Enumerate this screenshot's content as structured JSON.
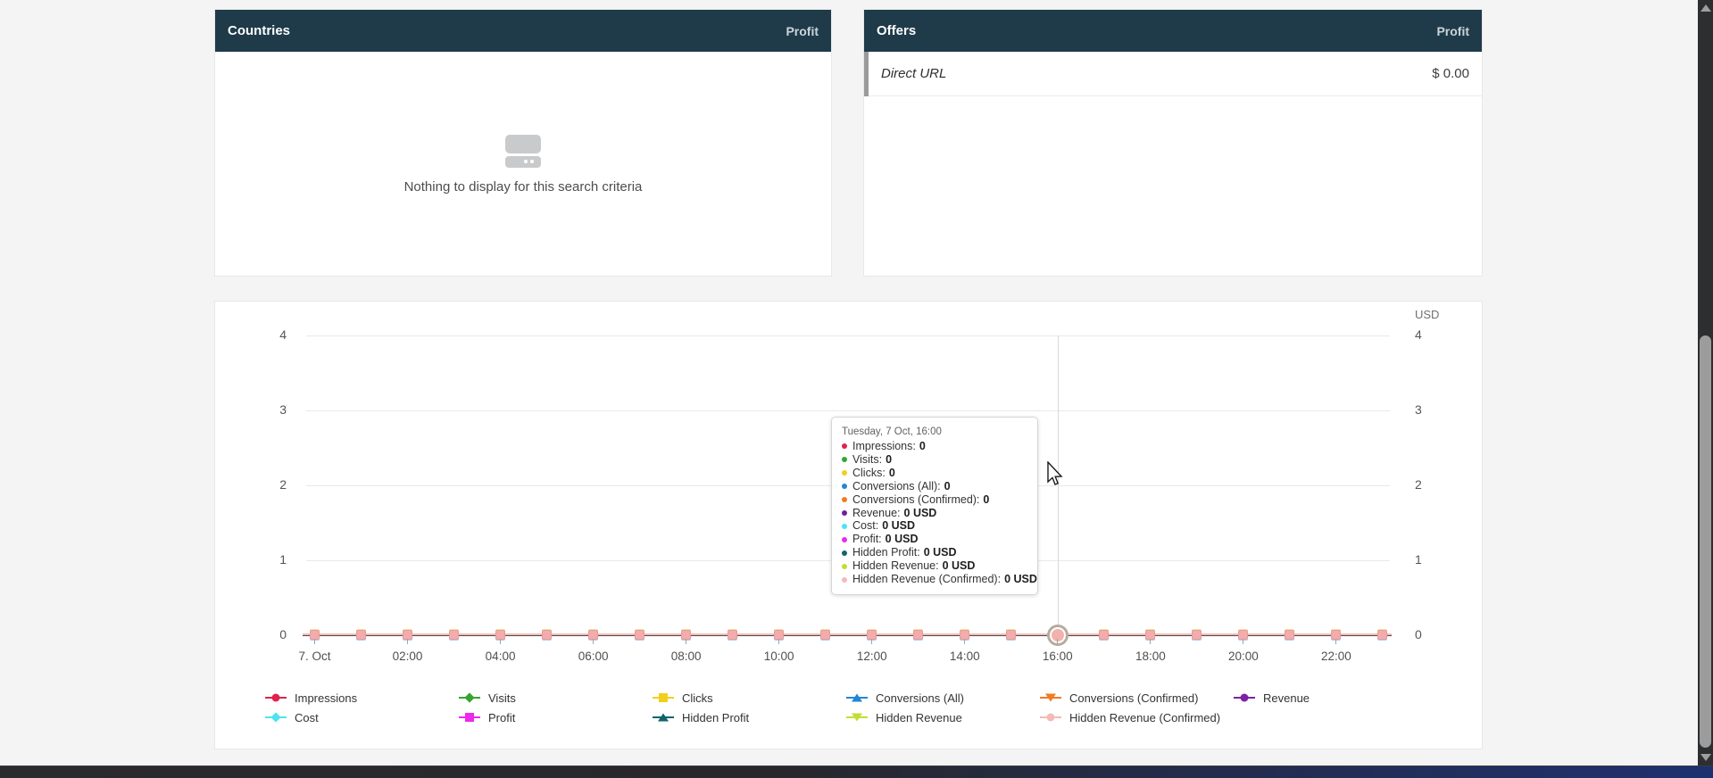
{
  "countries_panel": {
    "title": "Countries",
    "metric": "Profit",
    "empty_text": "Nothing to display for this search criteria"
  },
  "offers_panel": {
    "title": "Offers",
    "metric": "Profit",
    "rows": [
      {
        "name": "Direct URL",
        "value": "$ 0.00"
      }
    ]
  },
  "chart_data": {
    "type": "line",
    "title": "",
    "unit": "USD",
    "ylim": [
      0,
      4
    ],
    "y_ticks": [
      4,
      3,
      2,
      1,
      0
    ],
    "grid": true,
    "legend_position": "bottom",
    "x": [
      "00:00",
      "01:00",
      "02:00",
      "03:00",
      "04:00",
      "05:00",
      "06:00",
      "07:00",
      "08:00",
      "09:00",
      "10:00",
      "11:00",
      "12:00",
      "13:00",
      "14:00",
      "15:00",
      "16:00",
      "17:00",
      "18:00",
      "19:00",
      "20:00",
      "21:00",
      "22:00",
      "23:00"
    ],
    "x_tick_labels": [
      "7. Oct",
      "02:00",
      "04:00",
      "06:00",
      "08:00",
      "10:00",
      "12:00",
      "14:00",
      "16:00",
      "18:00",
      "20:00",
      "22:00"
    ],
    "hover_index": 16,
    "series": [
      {
        "name": "Impressions",
        "color": "#e0234e",
        "marker": "circle",
        "values": [
          0,
          0,
          0,
          0,
          0,
          0,
          0,
          0,
          0,
          0,
          0,
          0,
          0,
          0,
          0,
          0,
          0,
          0,
          0,
          0,
          0,
          0,
          0,
          0
        ]
      },
      {
        "name": "Visits",
        "color": "#35a433",
        "marker": "diamond",
        "values": [
          0,
          0,
          0,
          0,
          0,
          0,
          0,
          0,
          0,
          0,
          0,
          0,
          0,
          0,
          0,
          0,
          0,
          0,
          0,
          0,
          0,
          0,
          0,
          0
        ]
      },
      {
        "name": "Clicks",
        "color": "#f2cf1d",
        "marker": "square",
        "values": [
          0,
          0,
          0,
          0,
          0,
          0,
          0,
          0,
          0,
          0,
          0,
          0,
          0,
          0,
          0,
          0,
          0,
          0,
          0,
          0,
          0,
          0,
          0,
          0
        ]
      },
      {
        "name": "Conversions (All)",
        "color": "#2086d6",
        "marker": "triangle-up",
        "values": [
          0,
          0,
          0,
          0,
          0,
          0,
          0,
          0,
          0,
          0,
          0,
          0,
          0,
          0,
          0,
          0,
          0,
          0,
          0,
          0,
          0,
          0,
          0,
          0
        ]
      },
      {
        "name": "Conversions (Confirmed)",
        "color": "#f07c22",
        "marker": "triangle-down",
        "values": [
          0,
          0,
          0,
          0,
          0,
          0,
          0,
          0,
          0,
          0,
          0,
          0,
          0,
          0,
          0,
          0,
          0,
          0,
          0,
          0,
          0,
          0,
          0,
          0
        ]
      },
      {
        "name": "Revenue",
        "color": "#7e21a5",
        "marker": "circle",
        "values": [
          0,
          0,
          0,
          0,
          0,
          0,
          0,
          0,
          0,
          0,
          0,
          0,
          0,
          0,
          0,
          0,
          0,
          0,
          0,
          0,
          0,
          0,
          0,
          0
        ]
      },
      {
        "name": "Cost",
        "color": "#4fe3f2",
        "marker": "diamond",
        "values": [
          0,
          0,
          0,
          0,
          0,
          0,
          0,
          0,
          0,
          0,
          0,
          0,
          0,
          0,
          0,
          0,
          0,
          0,
          0,
          0,
          0,
          0,
          0,
          0
        ]
      },
      {
        "name": "Profit",
        "color": "#ee28ee",
        "marker": "square",
        "values": [
          0,
          0,
          0,
          0,
          0,
          0,
          0,
          0,
          0,
          0,
          0,
          0,
          0,
          0,
          0,
          0,
          0,
          0,
          0,
          0,
          0,
          0,
          0,
          0
        ]
      },
      {
        "name": "Hidden Profit",
        "color": "#11636c",
        "marker": "triangle-up",
        "values": [
          0,
          0,
          0,
          0,
          0,
          0,
          0,
          0,
          0,
          0,
          0,
          0,
          0,
          0,
          0,
          0,
          0,
          0,
          0,
          0,
          0,
          0,
          0,
          0
        ]
      },
      {
        "name": "Hidden Revenue",
        "color": "#c3dd33",
        "marker": "triangle-down",
        "values": [
          0,
          0,
          0,
          0,
          0,
          0,
          0,
          0,
          0,
          0,
          0,
          0,
          0,
          0,
          0,
          0,
          0,
          0,
          0,
          0,
          0,
          0,
          0,
          0
        ]
      },
      {
        "name": "Hidden Revenue (Confirmed)",
        "color": "#f5bab6",
        "marker": "circle",
        "values": [
          0,
          0,
          0,
          0,
          0,
          0,
          0,
          0,
          0,
          0,
          0,
          0,
          0,
          0,
          0,
          0,
          0,
          0,
          0,
          0,
          0,
          0,
          0,
          0
        ]
      }
    ]
  },
  "tooltip": {
    "title": "Tuesday, 7 Oct, 16:00",
    "rows": [
      {
        "label": "Impressions:",
        "value": "0",
        "color": "#e0234e"
      },
      {
        "label": "Visits:",
        "value": "0",
        "color": "#35a433"
      },
      {
        "label": "Clicks:",
        "value": "0",
        "color": "#f2cf1d"
      },
      {
        "label": "Conversions (All):",
        "value": "0",
        "color": "#2086d6"
      },
      {
        "label": "Conversions (Confirmed):",
        "value": "0",
        "color": "#f07c22"
      },
      {
        "label": "Revenue:",
        "value": "0 USD",
        "color": "#701f9e"
      },
      {
        "label": "Cost:",
        "value": "0 USD",
        "color": "#4fe3f2"
      },
      {
        "label": "Profit:",
        "value": "0 USD",
        "color": "#ee28ee"
      },
      {
        "label": "Hidden Profit:",
        "value": "0 USD",
        "color": "#11636c"
      },
      {
        "label": "Hidden Revenue:",
        "value": "0 USD",
        "color": "#c3dd33"
      },
      {
        "label": "Hidden Revenue (Confirmed):",
        "value": "0 USD",
        "color": "#f5bab6"
      }
    ]
  },
  "legend": {
    "items": [
      {
        "label": "Impressions",
        "color": "#e0234e",
        "shape": "circle"
      },
      {
        "label": "Visits",
        "color": "#35a433",
        "shape": "diamond"
      },
      {
        "label": "Clicks",
        "color": "#f2cf1d",
        "shape": "square"
      },
      {
        "label": "Conversions (All)",
        "color": "#2086d6",
        "shape": "triangle-up"
      },
      {
        "label": "Conversions (Confirmed)",
        "color": "#f07c22",
        "shape": "triangle-down"
      },
      {
        "label": "Revenue",
        "color": "#7e21a5",
        "shape": "circle"
      },
      {
        "label": "Cost",
        "color": "#4fe3f2",
        "shape": "diamond"
      },
      {
        "label": "Profit",
        "color": "#ee28ee",
        "shape": "square"
      },
      {
        "label": "Hidden Profit",
        "color": "#11636c",
        "shape": "triangle-up"
      },
      {
        "label": "Hidden Revenue",
        "color": "#c3dd33",
        "shape": "triangle-down"
      },
      {
        "label": "Hidden Revenue (Confirmed)",
        "color": "#f5bab6",
        "shape": "circle"
      }
    ]
  }
}
